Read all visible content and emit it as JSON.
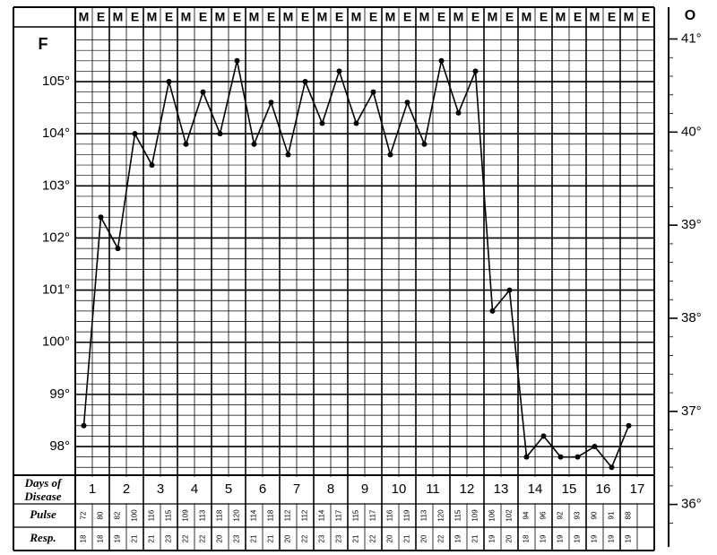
{
  "chart_data": {
    "type": "line",
    "color": "#000000",
    "y_label": "F",
    "y2_label": "O",
    "categories": [
      "M",
      "E",
      "M",
      "E",
      "M",
      "E",
      "M",
      "E",
      "M",
      "E",
      "M",
      "E",
      "M",
      "E",
      "M",
      "E",
      "M",
      "E",
      "M",
      "E",
      "M",
      "E",
      "M",
      "E",
      "M",
      "E",
      "M",
      "E",
      "M",
      "E",
      "M",
      "E",
      "M",
      "E"
    ],
    "values": [
      98.4,
      102.4,
      101.8,
      104.0,
      103.4,
      105.0,
      103.8,
      104.8,
      104.0,
      105.4,
      103.8,
      104.6,
      103.6,
      105.0,
      104.2,
      105.2,
      104.2,
      104.8,
      103.6,
      104.6,
      103.8,
      105.4,
      104.4,
      105.2,
      100.6,
      101.0,
      97.8,
      98.2,
      97.8,
      97.8,
      98.0,
      97.6,
      98.4,
      null
    ],
    "ylim": [
      97.45,
      106.05
    ],
    "yticks": [
      {
        "value": 98,
        "label": "98°"
      },
      {
        "value": 99,
        "label": "99°"
      },
      {
        "value": 100,
        "label": "100°"
      },
      {
        "value": 101,
        "label": "101°"
      },
      {
        "value": 102,
        "label": "102°"
      },
      {
        "value": 103,
        "label": "103°"
      },
      {
        "value": 104,
        "label": "104°"
      },
      {
        "value": 105,
        "label": "105°"
      }
    ],
    "y2lim": [
      35.64,
      41.13
    ],
    "y2ticks": [
      {
        "value": 36,
        "label": "36°"
      },
      {
        "value": 37,
        "label": "37°"
      },
      {
        "value": 38,
        "label": "38°"
      },
      {
        "value": 39,
        "label": "39°"
      },
      {
        "value": 40,
        "label": "40°"
      },
      {
        "value": 41,
        "label": "41°"
      }
    ],
    "days_label": [
      "Days of",
      "Disease"
    ],
    "days": [
      "1",
      "2",
      "3",
      "4",
      "5",
      "6",
      "7",
      "8",
      "9",
      "10",
      "11",
      "12",
      "13",
      "14",
      "15",
      "16",
      "17"
    ],
    "pulse_label": "Pulse",
    "pulse": [
      72,
      80,
      82,
      100,
      116,
      115,
      109,
      113,
      118,
      120,
      114,
      118,
      112,
      112,
      114,
      117,
      115,
      117,
      116,
      119,
      113,
      120,
      115,
      109,
      106,
      102,
      94,
      96,
      92,
      93,
      90,
      91,
      88,
      null
    ],
    "resp_label": "Resp.",
    "resp": [
      18,
      18,
      19,
      21,
      21,
      23,
      22,
      22,
      20,
      23,
      21,
      21,
      20,
      22,
      23,
      23,
      21,
      22,
      20,
      21,
      20,
      22,
      19,
      21,
      19,
      20,
      18,
      19,
      19,
      19,
      19,
      19,
      19,
      null
    ]
  }
}
